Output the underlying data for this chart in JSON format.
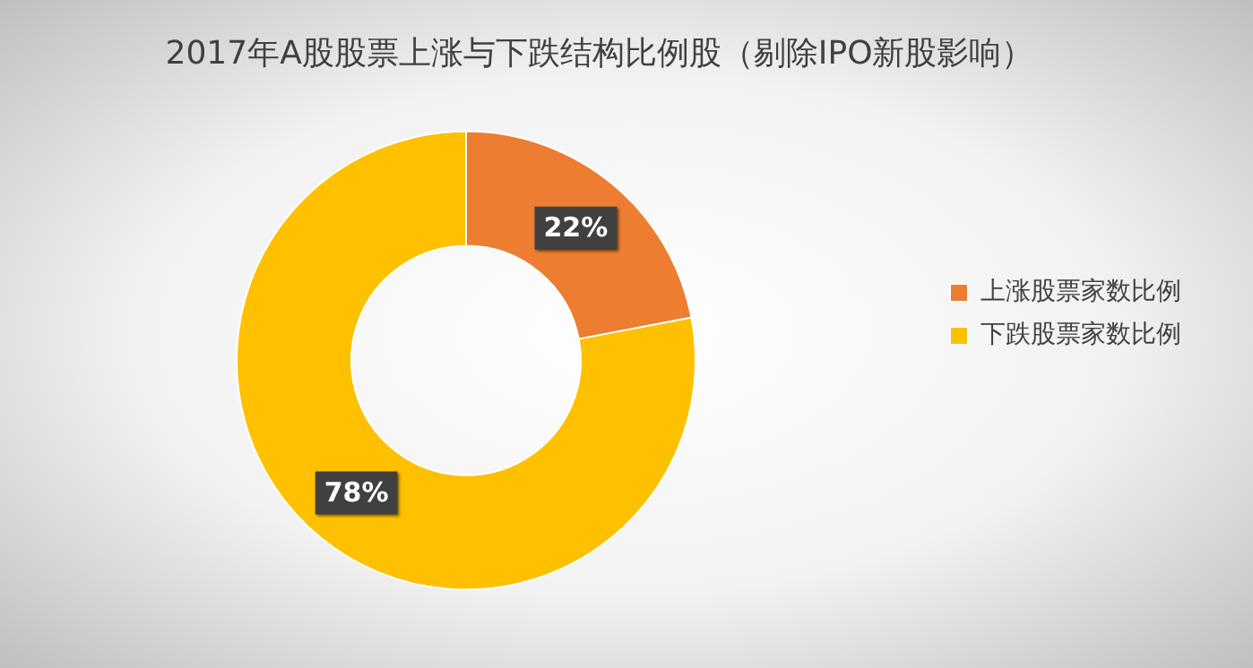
{
  "chart_data": {
    "type": "donut",
    "title": "2017年A股股票上涨与下跌结构比例股（剔除IPO新股影响）",
    "categories": [
      "上涨股票家数比例",
      "下跌股票家数比例"
    ],
    "values": [
      22,
      78
    ],
    "value_labels": [
      "22%",
      "78%"
    ],
    "colors": [
      "#ed7d31",
      "#ffc000"
    ],
    "legend": "right"
  }
}
